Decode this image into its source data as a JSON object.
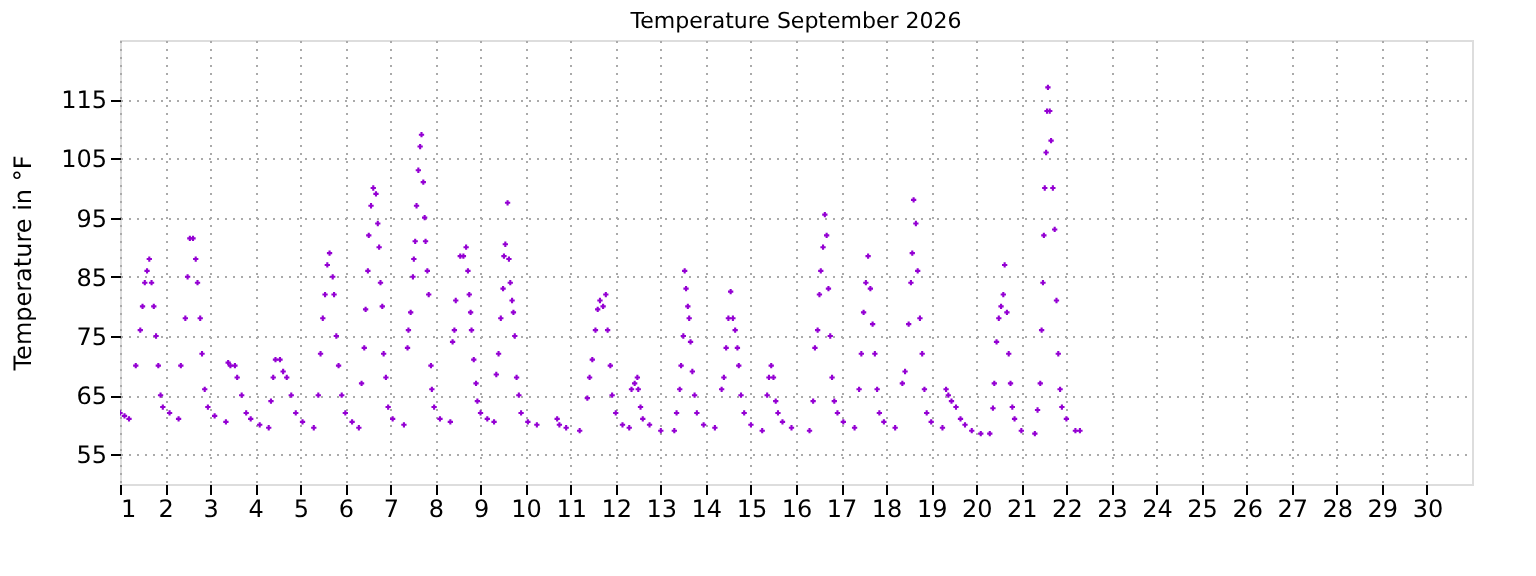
{
  "chart_data": {
    "type": "scatter",
    "title": "Temperature September 2026",
    "ylabel": "Temperature in °F",
    "xlim": [
      1,
      31
    ],
    "xticks": [
      1,
      2,
      3,
      4,
      5,
      6,
      7,
      8,
      9,
      10,
      11,
      12,
      13,
      14,
      15,
      16,
      17,
      18,
      19,
      20,
      21,
      22,
      23,
      24,
      25,
      26,
      27,
      28,
      29,
      30
    ],
    "ylim": [
      50,
      125
    ],
    "yticks": [
      55,
      65,
      75,
      85,
      95,
      105,
      115
    ],
    "grid": true,
    "marker": "cross",
    "series": [
      {
        "color": "#9400d3",
        "x": [
          1.0,
          1.1,
          1.2,
          1.35,
          1.45,
          1.5,
          1.55,
          1.6,
          1.65,
          1.7,
          1.75,
          1.8,
          1.85,
          1.9,
          1.95,
          2.1,
          2.3,
          2.35,
          2.45,
          2.5,
          2.55,
          2.62,
          2.68,
          2.72,
          2.78,
          2.82,
          2.88,
          2.95,
          3.1,
          3.35,
          3.4,
          3.45,
          3.55,
          3.6,
          3.7,
          3.8,
          3.9,
          4.1,
          4.3,
          4.35,
          4.4,
          4.45,
          4.55,
          4.62,
          4.7,
          4.8,
          4.9,
          5.05,
          5.3,
          5.4,
          5.45,
          5.5,
          5.55,
          5.6,
          5.65,
          5.72,
          5.75,
          5.8,
          5.85,
          5.92,
          6.0,
          6.15,
          6.3,
          6.36,
          6.42,
          6.45,
          6.5,
          6.52,
          6.57,
          6.62,
          6.68,
          6.72,
          6.75,
          6.78,
          6.82,
          6.85,
          6.9,
          6.95,
          7.05,
          7.3,
          7.38,
          7.4,
          7.45,
          7.5,
          7.52,
          7.55,
          7.58,
          7.62,
          7.66,
          7.69,
          7.73,
          7.76,
          7.78,
          7.82,
          7.85,
          7.9,
          7.92,
          7.97,
          8.1,
          8.33,
          8.38,
          8.42,
          8.45,
          8.55,
          8.62,
          8.68,
          8.72,
          8.75,
          8.78,
          8.8,
          8.85,
          8.9,
          8.93,
          9.0,
          9.15,
          9.3,
          9.35,
          9.4,
          9.45,
          9.5,
          9.52,
          9.55,
          9.6,
          9.63,
          9.66,
          9.7,
          9.73,
          9.76,
          9.8,
          9.85,
          9.9,
          10.05,
          10.25,
          10.7,
          10.75,
          10.9,
          11.2,
          11.37,
          11.42,
          11.48,
          11.55,
          11.6,
          11.65,
          11.72,
          11.78,
          11.82,
          11.88,
          11.92,
          12.0,
          12.15,
          12.3,
          12.35,
          12.42,
          12.48,
          12.5,
          12.55,
          12.6,
          12.75,
          13.0,
          13.3,
          13.35,
          13.42,
          13.45,
          13.5,
          13.53,
          13.56,
          13.6,
          13.63,
          13.66,
          13.7,
          13.75,
          13.8,
          13.95,
          14.2,
          14.35,
          14.4,
          14.45,
          14.5,
          14.55,
          14.6,
          14.65,
          14.7,
          14.73,
          14.78,
          14.85,
          15.0,
          15.25,
          15.36,
          15.4,
          15.45,
          15.5,
          15.55,
          15.6,
          15.7,
          15.9,
          16.3,
          16.38,
          16.42,
          16.48,
          16.52,
          16.55,
          16.6,
          16.64,
          16.68,
          16.72,
          16.76,
          16.8,
          16.85,
          16.92,
          17.05,
          17.3,
          17.4,
          17.45,
          17.5,
          17.55,
          17.6,
          17.65,
          17.7,
          17.75,
          17.8,
          17.85,
          17.95,
          18.2,
          18.36,
          18.42,
          18.5,
          18.55,
          18.58,
          18.61,
          18.66,
          18.7,
          18.75,
          18.8,
          18.85,
          18.9,
          19.0,
          19.25,
          19.33,
          19.38,
          19.45,
          19.55,
          19.65,
          19.75,
          19.9,
          20.1,
          20.3,
          20.37,
          20.4,
          20.45,
          20.5,
          20.55,
          20.6,
          20.63,
          20.68,
          20.72,
          20.76,
          20.8,
          20.85,
          21.0,
          21.3,
          21.36,
          21.42,
          21.45,
          21.48,
          21.5,
          21.52,
          21.55,
          21.57,
          21.59,
          21.63,
          21.66,
          21.7,
          21.74,
          21.78,
          21.82,
          21.86,
          21.9,
          22.0,
          22.2,
          22.3
        ],
        "values": [
          62,
          61.5,
          61,
          70,
          76,
          80,
          84,
          86,
          88,
          84,
          80,
          75,
          70,
          65,
          63,
          62,
          61,
          70,
          78,
          85,
          91.5,
          91.5,
          88,
          84,
          78,
          72,
          66,
          63,
          61.5,
          60.5,
          70.5,
          70,
          70,
          68,
          65,
          62,
          61,
          60,
          59.5,
          64,
          68,
          71,
          71,
          69,
          68,
          65,
          62,
          60.5,
          59.5,
          65,
          72,
          78,
          82,
          87,
          89,
          85,
          82,
          75,
          70,
          65,
          62,
          60.5,
          59.5,
          67,
          73,
          79.5,
          86,
          92,
          97,
          100,
          99,
          94,
          90,
          84,
          80,
          72,
          68,
          63,
          61,
          60,
          73,
          76,
          79,
          85,
          88,
          91,
          97,
          103,
          107,
          109,
          101,
          95,
          91,
          86,
          82,
          70,
          66,
          63,
          61,
          60.5,
          74,
          76,
          81,
          88.5,
          88.5,
          90,
          86,
          82,
          79,
          76,
          71,
          67,
          64,
          62,
          61,
          60.5,
          68.5,
          72,
          78,
          83,
          88.5,
          90.5,
          97.5,
          88,
          84,
          81,
          79,
          75,
          68,
          65,
          62,
          60.5,
          60,
          61,
          60,
          59.5,
          59,
          64.5,
          68,
          71,
          76,
          79.5,
          81,
          80,
          82,
          76,
          70,
          65,
          62,
          60,
          59.5,
          66,
          67,
          68,
          66,
          63,
          61,
          60,
          59,
          59,
          62,
          66,
          70,
          75,
          86,
          83,
          80,
          78,
          74,
          69,
          65,
          62,
          60,
          59.5,
          66,
          68,
          73,
          78,
          82.5,
          78,
          76,
          73,
          70,
          65,
          62,
          60,
          59,
          65,
          68,
          70,
          68,
          64,
          62,
          60.5,
          59.5,
          59,
          64,
          73,
          76,
          82,
          86,
          90,
          95.5,
          92,
          83,
          75,
          68,
          64,
          62,
          60.5,
          59.5,
          66,
          72,
          79,
          84,
          88.5,
          83,
          77,
          72,
          66,
          62,
          60.5,
          59.5,
          67,
          69,
          77,
          84,
          89,
          98,
          94,
          86,
          78,
          72,
          66,
          62,
          60.5,
          59.5,
          66,
          65,
          64,
          63,
          61,
          60,
          59,
          58.5,
          58.5,
          62.8,
          67,
          74,
          78,
          80,
          82,
          87,
          79,
          72,
          67,
          63,
          61,
          59,
          58.5,
          62.5,
          67,
          76,
          84,
          92,
          100,
          106,
          113,
          117,
          113,
          108,
          100,
          93,
          81,
          72,
          66,
          63,
          61,
          59,
          59
        ]
      }
    ]
  }
}
